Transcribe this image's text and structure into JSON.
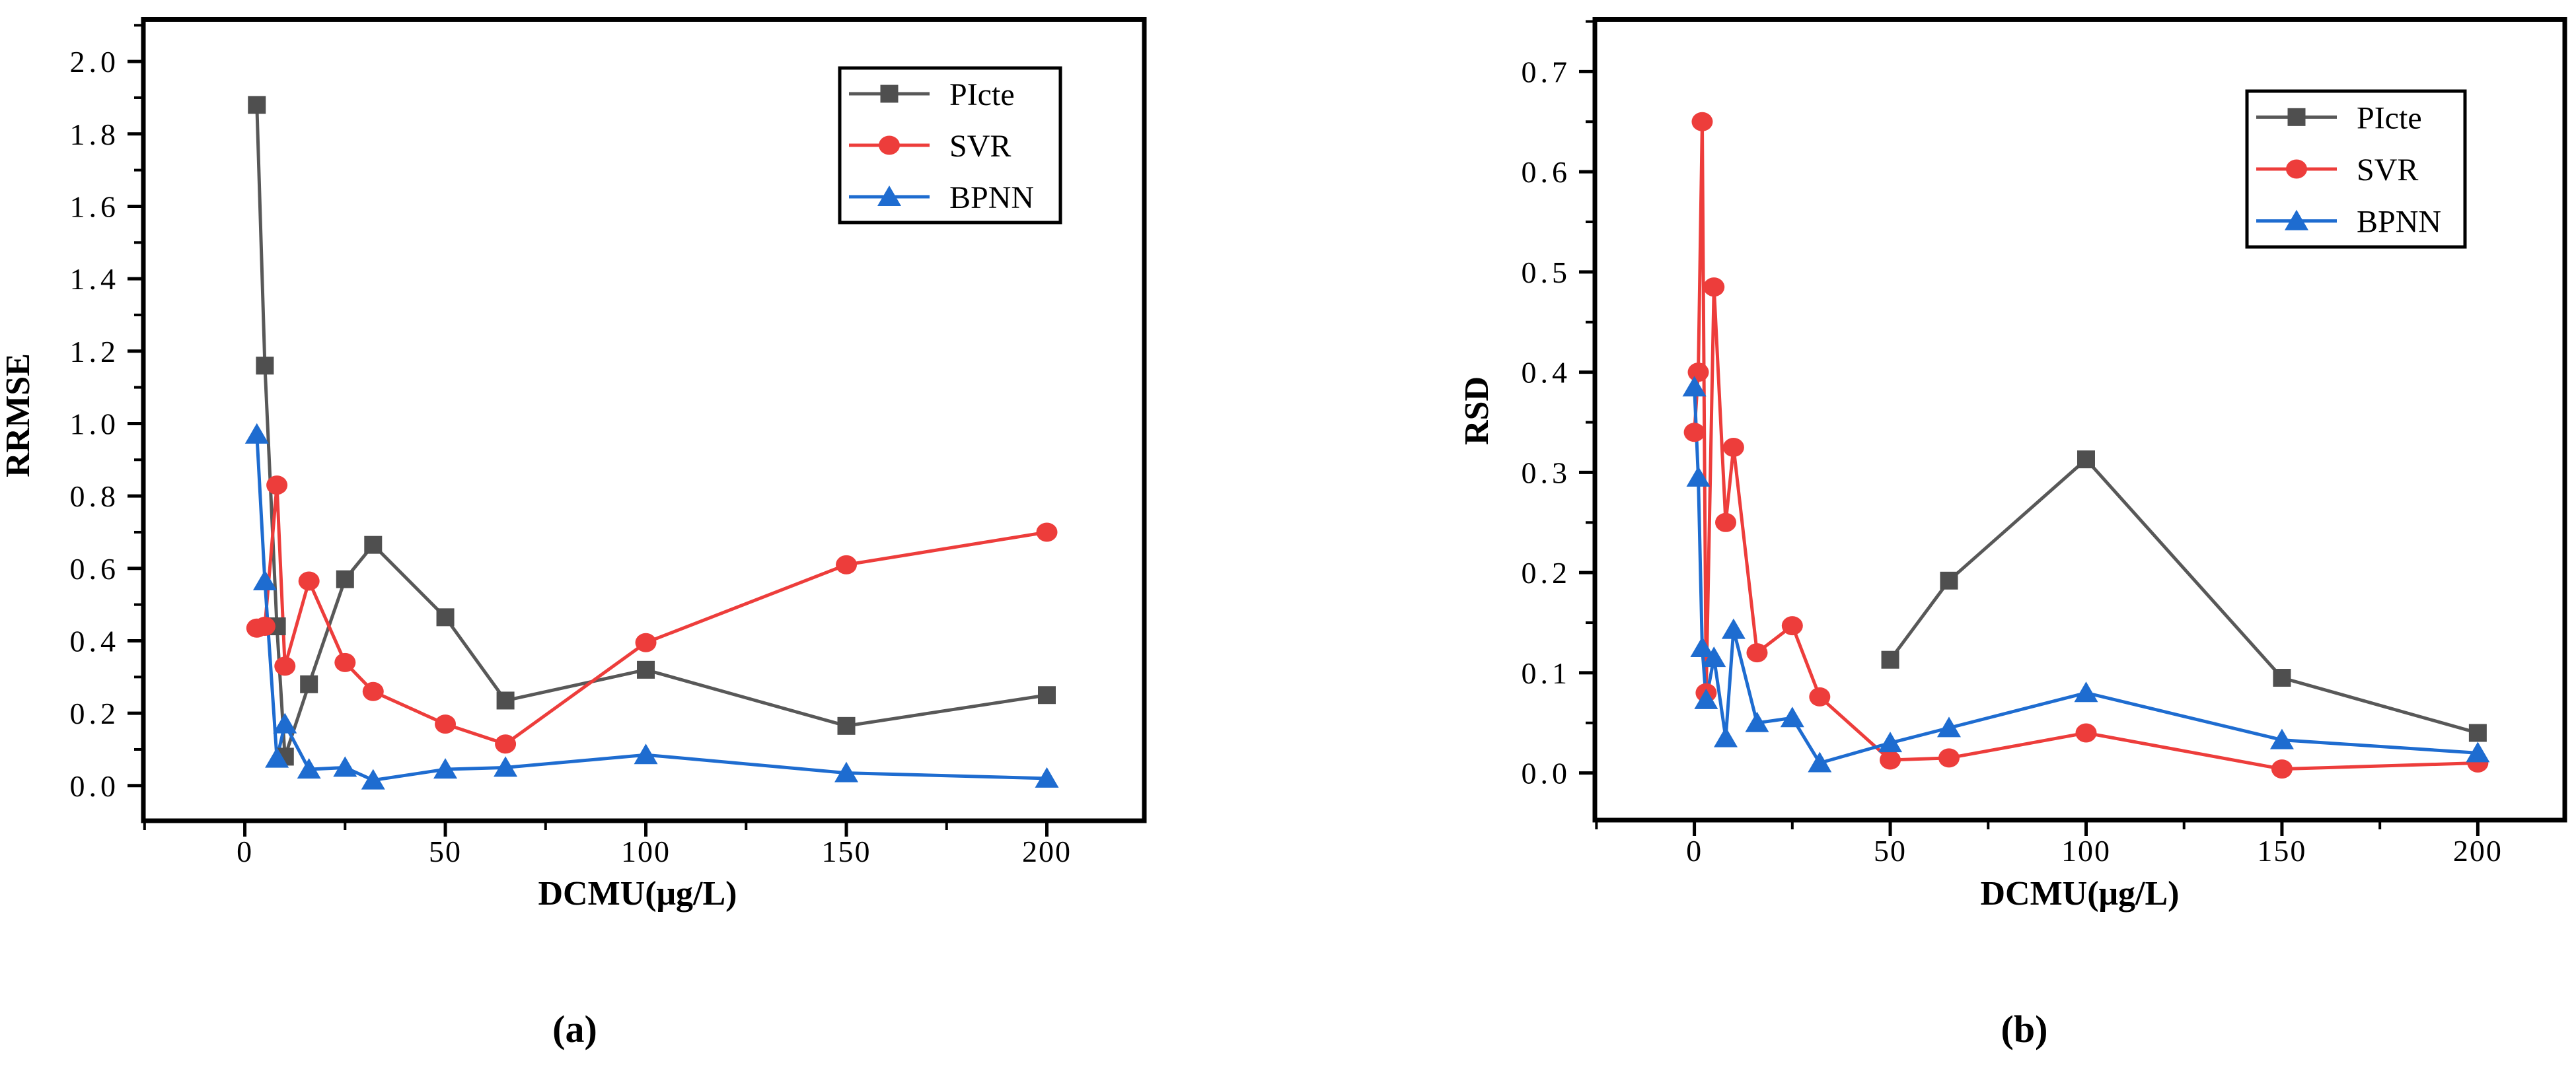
{
  "figure": {
    "background": "#ffffff",
    "panel_captions": [
      "(a)",
      "(b)"
    ]
  },
  "chart_data": [
    {
      "type": "line",
      "caption": "(a)",
      "title": "",
      "xlabel": "DCMU(μg/L)",
      "ylabel": "RRMSE",
      "xlim": [
        -25.3,
        224.3
      ],
      "ylim": [
        -0.097,
        2.116
      ],
      "xticks": [
        0,
        50,
        100,
        150,
        200
      ],
      "xminorticks": [
        -25,
        25,
        75,
        125,
        175
      ],
      "yticks": [
        0.0,
        0.2,
        0.4,
        0.6,
        0.8,
        1.0,
        1.2,
        1.4,
        1.6,
        1.8,
        2.0
      ],
      "yminorticks": [
        0.1,
        0.3,
        0.5,
        0.7,
        0.9,
        1.1,
        1.3,
        1.5,
        1.7,
        1.9,
        2.1
      ],
      "ytick_decimals": 1,
      "grid": false,
      "legend_position": "upper right",
      "legend": [
        "PIcte",
        "SVR",
        "BPNN"
      ],
      "series": [
        {
          "name": "PIcte",
          "marker": "square",
          "color": "#4f4f4f",
          "line_color": "#585858",
          "x": [
            3,
            5,
            8,
            10,
            16,
            25,
            32,
            50,
            65,
            100,
            150,
            200
          ],
          "y": [
            1.88,
            1.16,
            0.44,
            0.08,
            0.28,
            0.57,
            0.665,
            0.465,
            0.235,
            0.32,
            0.165,
            0.25
          ]
        },
        {
          "name": "SVR",
          "marker": "circle",
          "color": "#ed3d3b",
          "line_color": "#ed3d3b",
          "x": [
            3,
            5,
            8,
            10,
            16,
            25,
            32,
            50,
            65,
            100,
            150,
            200
          ],
          "y": [
            0.435,
            0.44,
            0.83,
            0.33,
            0.565,
            0.34,
            0.26,
            0.17,
            0.115,
            0.395,
            0.61,
            0.7
          ]
        },
        {
          "name": "BPNN",
          "marker": "triangle",
          "color": "#1e6cd0",
          "line_color": "#1e6cd0",
          "x": [
            3,
            5,
            8,
            10,
            16,
            25,
            32,
            50,
            65,
            100,
            150,
            200
          ],
          "y": [
            0.97,
            0.565,
            0.075,
            0.17,
            0.045,
            0.05,
            0.015,
            0.045,
            0.05,
            0.085,
            0.035,
            0.02
          ]
        }
      ]
    },
    {
      "type": "line",
      "caption": "(b)",
      "title": "",
      "xlabel": "DCMU(μg/L)",
      "ylabel": "RSD",
      "xlim": [
        -25.4,
        222.2
      ],
      "ylim": [
        -0.047,
        0.752
      ],
      "xticks": [
        0,
        50,
        100,
        150,
        200
      ],
      "xminorticks": [
        -25,
        25,
        75,
        125,
        175
      ],
      "yticks": [
        0.0,
        0.1,
        0.2,
        0.3,
        0.4,
        0.5,
        0.6,
        0.7
      ],
      "yminorticks": [
        0.05,
        0.15,
        0.25,
        0.35,
        0.45,
        0.55,
        0.65,
        0.75
      ],
      "ytick_decimals": 1,
      "grid": false,
      "legend_position": "upper right",
      "legend": [
        "PIcte",
        "SVR",
        "BPNN"
      ],
      "series": [
        {
          "name": "PIcte",
          "marker": "square",
          "color": "#4f4f4f",
          "line_color": "#585858",
          "x": [
            50,
            65,
            100,
            150,
            200
          ],
          "y": [
            0.113,
            0.192,
            0.313,
            0.095,
            0.04
          ]
        },
        {
          "name": "SVR",
          "marker": "circle",
          "color": "#ed3d3b",
          "line_color": "#ed3d3b",
          "x": [
            0,
            1,
            2,
            3,
            5,
            8,
            10,
            16,
            25,
            32,
            50,
            65,
            100,
            150,
            200
          ],
          "y": [
            0.34,
            0.4,
            0.65,
            0.08,
            0.485,
            0.25,
            0.325,
            0.12,
            0.147,
            0.076,
            0.013,
            0.015,
            0.04,
            0.004,
            0.01
          ]
        },
        {
          "name": "BPNN",
          "marker": "triangle",
          "color": "#1e6cd0",
          "line_color": "#1e6cd0",
          "x": [
            0,
            1,
            2,
            3,
            5,
            8,
            10,
            16,
            25,
            32,
            50,
            65,
            100,
            150,
            200
          ],
          "y": [
            0.385,
            0.295,
            0.125,
            0.073,
            0.115,
            0.035,
            0.143,
            0.05,
            0.055,
            0.01,
            0.03,
            0.045,
            0.08,
            0.033,
            0.02
          ]
        }
      ]
    }
  ]
}
